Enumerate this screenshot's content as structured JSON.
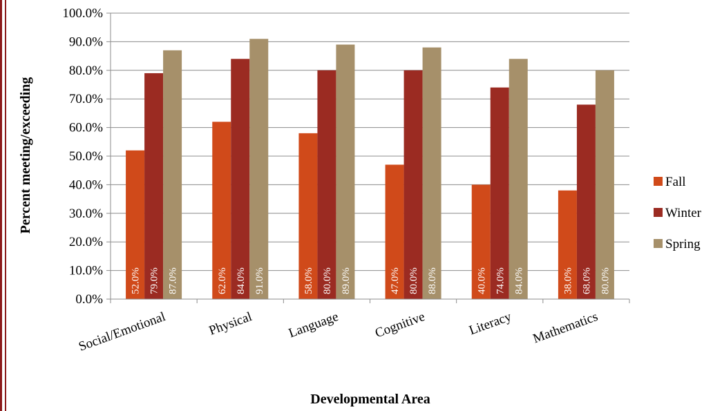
{
  "chart_data": {
    "type": "bar",
    "categories": [
      "Social/Emotional",
      "Physical",
      "Language",
      "Cognitive",
      "Literacy",
      "Mathematics"
    ],
    "series": [
      {
        "name": "Fall",
        "color": "#d04a1a",
        "values": [
          52.0,
          62.0,
          58.0,
          47.0,
          40.0,
          38.0
        ]
      },
      {
        "name": "Winter",
        "color": "#9b2b22",
        "values": [
          79.0,
          84.0,
          80.0,
          80.0,
          74.0,
          68.0
        ]
      },
      {
        "name": "Spring",
        "color": "#a6906a",
        "values": [
          87.0,
          91.0,
          89.0,
          88.0,
          84.0,
          80.0
        ]
      }
    ],
    "data_labels": [
      [
        "52.0%",
        "79.0%",
        "87.0%"
      ],
      [
        "62.0%",
        "84.0%",
        "91.0%"
      ],
      [
        "58.0%",
        "80.0%",
        "89.0%"
      ],
      [
        "47.0%",
        "80.0%",
        "88.0%"
      ],
      [
        "40.0%",
        "74.0%",
        "84.0%"
      ],
      [
        "38.0%",
        "68.0%",
        "80.0%"
      ]
    ],
    "y_ticks": [
      "0.0%",
      "10.0%",
      "20.0%",
      "30.0%",
      "40.0%",
      "50.0%",
      "60.0%",
      "70.0%",
      "80.0%",
      "90.0%",
      "100.0%"
    ],
    "ylim": [
      0,
      100
    ],
    "xlabel": "Developmental Area",
    "ylabel": "Percent meeting/exceeding",
    "grid": true,
    "legend_position": "right",
    "gridline_color": "#8c8c8c",
    "border_color": "#8b1a1a"
  }
}
